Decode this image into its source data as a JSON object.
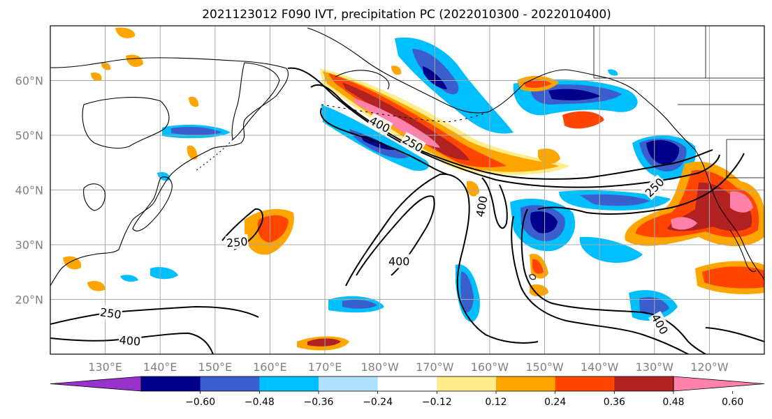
{
  "title": "2021123012 F090 IVT, precipitation PC (2022010300 - 2022010400)",
  "map": {
    "lat_range": [
      10,
      70
    ],
    "lon_range_east": [
      120,
      250
    ],
    "lat_ticks": [
      {
        "value": 20,
        "label": "20°N"
      },
      {
        "value": 30,
        "label": "30°N"
      },
      {
        "value": 40,
        "label": "40°N"
      },
      {
        "value": 50,
        "label": "50°N"
      },
      {
        "value": 60,
        "label": "60°N"
      }
    ],
    "lon_ticks": [
      {
        "value": 130,
        "label": "130°E"
      },
      {
        "value": 140,
        "label": "140°E"
      },
      {
        "value": 150,
        "label": "150°E"
      },
      {
        "value": 160,
        "label": "160°E"
      },
      {
        "value": 170,
        "label": "170°E"
      },
      {
        "value": 180,
        "label": "180°W"
      },
      {
        "value": 190,
        "label": "170°W"
      },
      {
        "value": 200,
        "label": "160°W"
      },
      {
        "value": 210,
        "label": "150°W"
      },
      {
        "value": 220,
        "label": "140°W"
      },
      {
        "value": 230,
        "label": "130°W"
      },
      {
        "value": 240,
        "label": "120°W"
      }
    ],
    "grid": true,
    "contour_labels": [
      {
        "text": "400",
        "lon": 180,
        "lat": 52,
        "angle": 28
      },
      {
        "text": "250",
        "lon": 186,
        "lat": 48.5,
        "angle": 30
      },
      {
        "text": "400",
        "lon": 198.5,
        "lat": 37,
        "angle": -80
      },
      {
        "text": "250",
        "lon": 230,
        "lat": 40.5,
        "angle": -45
      },
      {
        "text": "250",
        "lon": 154,
        "lat": 30.5,
        "angle": -5
      },
      {
        "text": "400",
        "lon": 183.5,
        "lat": 27,
        "angle": 0
      },
      {
        "text": "400",
        "lon": 231,
        "lat": 15.5,
        "angle": 60
      },
      {
        "text": "250",
        "lon": 131,
        "lat": 17.5,
        "angle": 8
      },
      {
        "text": "400",
        "lon": 134.5,
        "lat": 12.5,
        "angle": 5
      }
    ]
  },
  "colorbar": {
    "boundaries": [
      -0.72,
      -0.6,
      -0.48,
      -0.36,
      -0.24,
      -0.12,
      0.12,
      0.24,
      0.36,
      0.48,
      0.6,
      0.72
    ],
    "colors": [
      "#9932cc",
      "#00008b",
      "#3a5fcd",
      "#00bfff",
      "#b0e2ff",
      "#ffffff",
      "#ffec8b",
      "#ffa500",
      "#ff4500",
      "#b22222",
      "#ff82ab"
    ],
    "tick_labels": [
      "−0.60",
      "−0.48",
      "−0.36",
      "−0.24",
      "−0.12",
      "0.12",
      "0.24",
      "0.36",
      "0.48",
      "0.60"
    ],
    "extend": "both"
  }
}
